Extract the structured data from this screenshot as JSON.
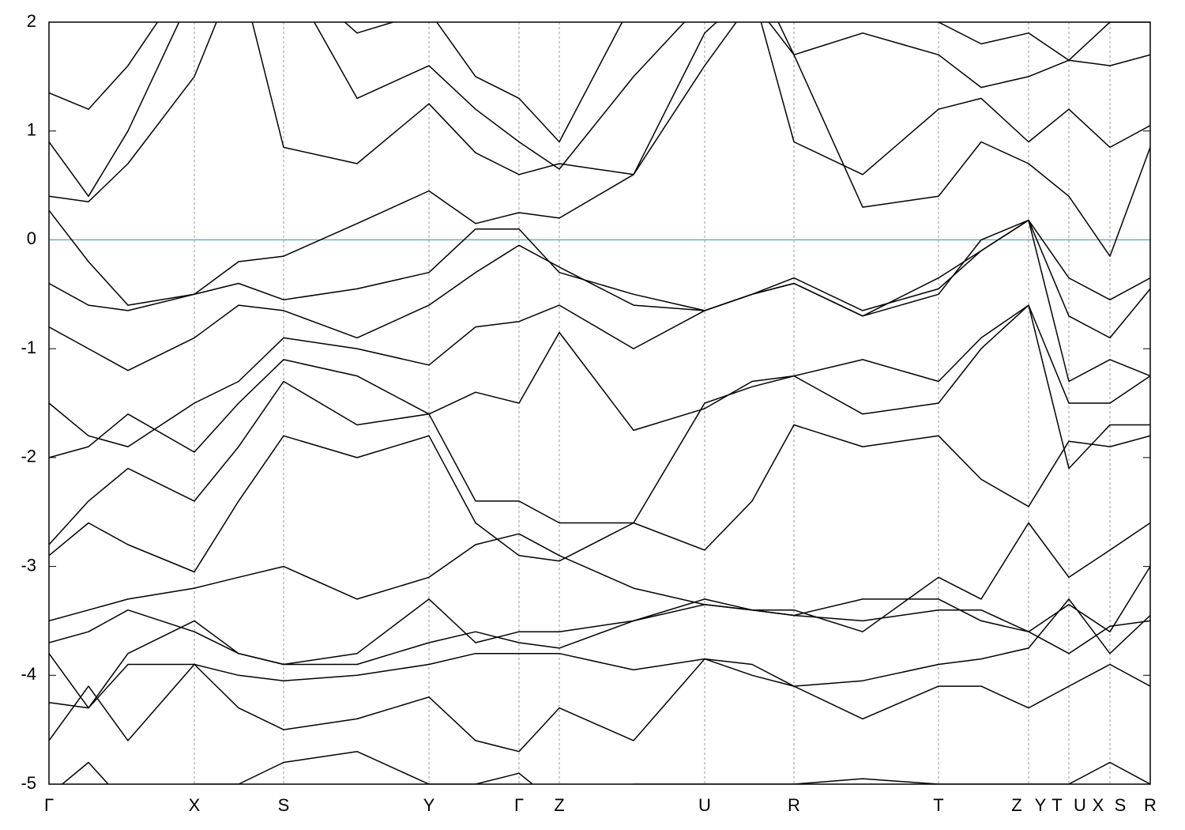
{
  "chart_data": {
    "type": "line",
    "x": [
      0,
      0.5,
      1.0,
      1.84,
      2.4,
      2.97,
      3.9,
      4.81,
      5.4,
      5.95,
      6.46,
      7.4,
      8.3,
      8.9,
      9.43,
      10.3,
      11.26,
      11.8,
      12.4,
      12.91,
      13.43,
      13.94
    ],
    "xlim": [
      0,
      13.94
    ],
    "xticks": [
      {
        "value": 0,
        "label": "Γ"
      },
      {
        "value": 1.84,
        "label": "X"
      },
      {
        "value": 2.97,
        "label": "S"
      },
      {
        "value": 4.81,
        "label": "Y"
      },
      {
        "value": 5.95,
        "label": "Γ"
      },
      {
        "value": 6.46,
        "label": "Z"
      },
      {
        "value": 8.3,
        "label": "U"
      },
      {
        "value": 9.43,
        "label": "R"
      },
      {
        "value": 11.26,
        "label": "T"
      },
      {
        "value": 12.25,
        "label": "Z"
      },
      {
        "value": 12.55,
        "label": "Y"
      },
      {
        "value": 12.76,
        "label": "T"
      },
      {
        "value": 13.05,
        "label": "U"
      },
      {
        "value": 13.28,
        "label": "X"
      },
      {
        "value": 13.56,
        "label": "S"
      },
      {
        "value": 13.94,
        "label": "R"
      }
    ],
    "vlines": [
      1.84,
      2.97,
      4.81,
      5.95,
      6.46,
      8.3,
      9.43,
      11.26,
      12.4,
      12.91,
      13.43
    ],
    "ylim": [
      -5,
      2
    ],
    "yticks": [
      -5,
      -4,
      -3,
      -2,
      -1,
      0,
      1,
      2
    ],
    "hline": 0,
    "hline_color": "#5fb4c8",
    "color": "#000000",
    "series": [
      {
        "values": [
          -4.6,
          -4.1,
          -4.6,
          -3.9,
          -4.3,
          -4.5,
          -4.4,
          -4.2,
          -4.6,
          -4.7,
          -4.3,
          -4.6,
          -3.85,
          -3.9,
          -4.1,
          -4.4,
          -4.1,
          -4.1,
          -4.3,
          -4.1,
          -3.9,
          -4.1
        ]
      },
      {
        "values": [
          -3.8,
          -4.3,
          -3.9,
          -3.9,
          -4.0,
          -4.05,
          -4.0,
          -3.9,
          -3.8,
          -3.8,
          -3.8,
          -3.95,
          -3.85,
          -4.0,
          -4.1,
          -4.05,
          -3.9,
          -3.85,
          -3.75,
          -3.3,
          -3.8,
          -3.45
        ]
      },
      {
        "values": [
          -3.7,
          -3.6,
          -3.4,
          -3.6,
          -3.8,
          -3.9,
          -3.8,
          -3.3,
          -3.7,
          -3.6,
          -3.6,
          -3.5,
          -3.35,
          -3.4,
          -3.45,
          -3.5,
          -3.4,
          -3.4,
          -3.6,
          -3.35,
          -3.6,
          -3.0
        ]
      },
      {
        "values": [
          -3.5,
          -3.4,
          -3.3,
          -3.2,
          -3.1,
          -3.0,
          -3.3,
          -3.1,
          -2.8,
          -2.7,
          -2.9,
          -3.2,
          -3.35,
          -3.4,
          -3.4,
          -3.6,
          -3.1,
          -3.3,
          -2.6,
          -3.1,
          -2.85,
          -2.6
        ]
      },
      {
        "values": [
          -2.9,
          -2.6,
          -2.8,
          -3.05,
          -2.4,
          -1.8,
          -2.0,
          -1.8,
          -2.6,
          -2.9,
          -2.95,
          -2.6,
          -2.85,
          -2.4,
          -1.7,
          -1.9,
          -1.8,
          -2.2,
          -2.45,
          -1.85,
          -1.9,
          -1.8
        ]
      },
      {
        "values": [
          -2.8,
          -2.4,
          -2.1,
          -2.4,
          -1.9,
          -1.3,
          -1.7,
          -1.6,
          -2.4,
          -2.4,
          -2.6,
          -2.6,
          -1.5,
          -1.35,
          -1.25,
          -1.1,
          -1.3,
          -0.9,
          -0.6,
          -2.1,
          -1.7,
          -1.7
        ]
      },
      {
        "values": [
          -2.0,
          -1.9,
          -1.6,
          -1.95,
          -1.5,
          -1.1,
          -1.25,
          -1.6,
          -1.4,
          -1.5,
          -0.85,
          -1.75,
          -1.55,
          -1.3,
          -1.25,
          -1.6,
          -1.5,
          -1.0,
          -0.6,
          -1.5,
          -1.5,
          -1.25
        ]
      },
      {
        "values": [
          -1.5,
          -1.8,
          -1.9,
          -1.5,
          -1.3,
          -0.9,
          -1.0,
          -1.15,
          -0.8,
          -0.75,
          -0.6,
          -1.0,
          -0.65,
          -0.5,
          -0.4,
          -0.7,
          -0.35,
          -0.1,
          0.18,
          -1.3,
          -1.1,
          -1.25
        ]
      },
      {
        "values": [
          -0.8,
          -1.0,
          -1.2,
          -0.9,
          -0.6,
          -0.65,
          -0.9,
          -0.6,
          -0.3,
          -0.05,
          -0.25,
          -0.6,
          -0.65,
          -0.5,
          -0.35,
          -0.65,
          -0.45,
          -0.1,
          0.18,
          -0.7,
          -0.9,
          -0.45
        ]
      },
      {
        "values": [
          -0.4,
          -0.6,
          -0.65,
          -0.5,
          -0.4,
          -0.55,
          -0.45,
          -0.3,
          0.1,
          0.1,
          -0.3,
          -0.5,
          -0.65,
          -0.5,
          -0.4,
          -0.7,
          -0.5,
          0.0,
          0.18,
          -0.35,
          -0.55,
          -0.35
        ]
      },
      {
        "values": [
          0.27,
          -0.2,
          -0.6,
          -0.5,
          -0.2,
          -0.15,
          0.15,
          0.45,
          0.15,
          0.25,
          0.2,
          0.6,
          1.6,
          2.2,
          1.7,
          0.3,
          0.4,
          0.9,
          0.7,
          0.4,
          -0.15,
          0.85
        ]
      },
      {
        "values": [
          0.4,
          0.35,
          0.7,
          1.5,
          2.5,
          0.85,
          0.7,
          1.25,
          0.8,
          0.6,
          0.7,
          0.6,
          1.9,
          2.3,
          0.9,
          0.6,
          1.2,
          1.3,
          0.9,
          1.2,
          0.85,
          1.05
        ]
      },
      {
        "values": [
          0.9,
          0.4,
          1.0,
          2.3,
          2.5,
          2.5,
          1.3,
          1.6,
          1.2,
          0.9,
          0.65,
          1.5,
          2.2,
          2.5,
          1.7,
          1.9,
          1.7,
          1.4,
          1.5,
          1.65,
          1.6,
          1.7
        ]
      },
      {
        "values": [
          1.35,
          1.2,
          1.6,
          2.5,
          2.5,
          2.5,
          1.9,
          2.1,
          1.5,
          1.3,
          0.9,
          2.2,
          2.5,
          2.5,
          2.0,
          2.1,
          2.0,
          1.8,
          1.9,
          1.65,
          2.0,
          2.0
        ]
      },
      {
        "values": [
          -5.1,
          -4.8,
          -5.2,
          -5.0,
          -5.0,
          -4.8,
          -4.7,
          -5.0,
          -5.0,
          -4.9,
          -5.2,
          -5.0,
          -5.0,
          -5.0,
          -5.0,
          -4.95,
          -5.0,
          -5.0,
          -5.0,
          -5.0,
          -4.8,
          -5.0
        ]
      },
      {
        "values": [
          -4.25,
          -4.3,
          -3.8,
          -3.5,
          -3.8,
          -3.9,
          -3.9,
          -3.7,
          -3.6,
          -3.7,
          -3.75,
          -3.5,
          -3.3,
          -3.4,
          -3.45,
          -3.3,
          -3.3,
          -3.5,
          -3.6,
          -3.8,
          -3.55,
          -3.5
        ]
      }
    ]
  }
}
